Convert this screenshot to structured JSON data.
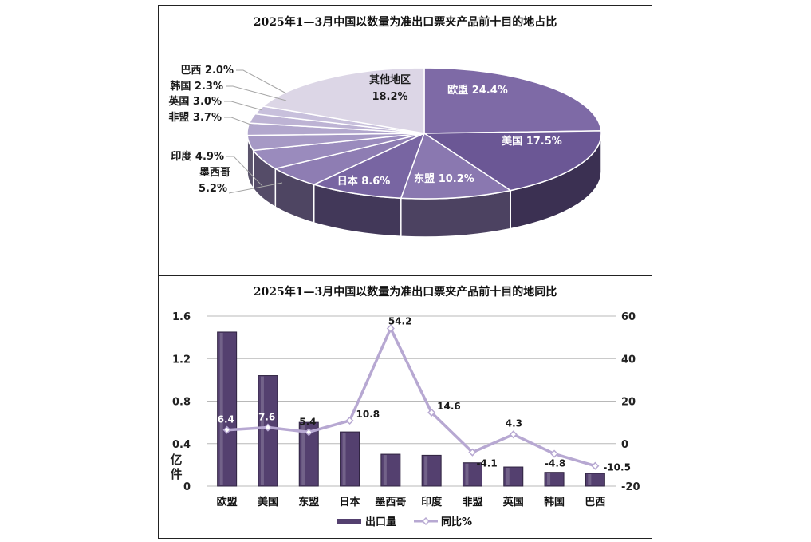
{
  "chart_data": [
    {
      "type": "pie",
      "title": "2025年1—3月中国以数量为准出口票夹产品前十目的地占比",
      "slices": [
        {
          "label": "欧盟",
          "value": 24.4,
          "value_label": "24.4%",
          "color": "#7e6aa6"
        },
        {
          "label": "美国",
          "value": 17.5,
          "value_label": "17.5%",
          "color": "#6b5795"
        },
        {
          "label": "东盟",
          "value": 10.2,
          "value_label": "10.2%",
          "color": "#8a78b0"
        },
        {
          "label": "日本",
          "value": 8.6,
          "value_label": "8.6%",
          "color": "#7865a2"
        },
        {
          "label": "墨西哥",
          "value": 5.2,
          "value_label": "5.2%",
          "color": "#8e7db3"
        },
        {
          "label": "印度",
          "value": 4.9,
          "value_label": "4.9%",
          "color": "#9a8bbd"
        },
        {
          "label": "非盟",
          "value": 3.7,
          "value_label": "3.7%",
          "color": "#a699c5"
        },
        {
          "label": "英国",
          "value": 3.0,
          "value_label": "3.0%",
          "color": "#b2a7cd"
        },
        {
          "label": "韩国",
          "value": 2.3,
          "value_label": "2.3%",
          "color": "#bdb3d4"
        },
        {
          "label": "巴西",
          "value": 2.0,
          "value_label": "2.0%",
          "color": "#c8c0dc"
        },
        {
          "label": "其他地区",
          "value": 18.2,
          "value_label": "18.2%",
          "color": "#dcd6e6"
        }
      ],
      "legend": "none"
    },
    {
      "type": "bar",
      "title": "2025年1—3月中国以数量为准出口票夹产品前十目的地同比",
      "categories": [
        "欧盟",
        "美国",
        "东盟",
        "日本",
        "墨西哥",
        "印度",
        "非盟",
        "英国",
        "韩国",
        "巴西"
      ],
      "series": [
        {
          "name": "出口量",
          "type": "bar",
          "axis": "left",
          "values": [
            1.45,
            1.04,
            0.6,
            0.51,
            0.3,
            0.29,
            0.22,
            0.18,
            0.13,
            0.12
          ]
        },
        {
          "name": "同比%",
          "type": "line",
          "axis": "right",
          "values": [
            6.4,
            7.6,
            5.4,
            10.8,
            54.2,
            14.6,
            -4.1,
            4.3,
            -4.8,
            -10.5
          ],
          "labels": [
            "6.4",
            "7.6",
            "5.4",
            "10.8",
            "54.2",
            "14.6",
            "-4.1",
            "4.3",
            "-4.8",
            "-10.5"
          ]
        }
      ],
      "ylabel": "亿件",
      "ylim": [
        0,
        1.6
      ],
      "yticks": [
        "0",
        "0.4",
        "0.8",
        "1.2",
        "1.6"
      ],
      "y2lim": [
        -20,
        60
      ],
      "y2ticks": [
        "-20",
        "0",
        "20",
        "40",
        "60"
      ],
      "grid": true,
      "legend": "bottom",
      "colors": {
        "bar": "#54406f",
        "line": "#b7a8d2"
      }
    }
  ]
}
